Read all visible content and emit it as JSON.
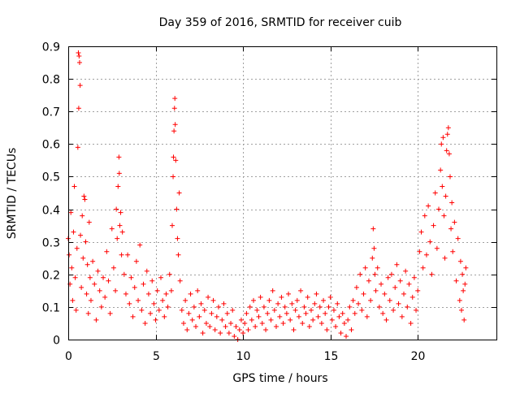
{
  "chart_data": {
    "type": "scatter",
    "title": "Day 359 of 2016, SRMTID for receiver cuib",
    "xlabel": "GPS time / hours",
    "ylabel": "SRMTID / TECUs",
    "xlim": [
      0,
      24.5
    ],
    "ylim": [
      0,
      0.9
    ],
    "xticks": [
      0,
      5,
      10,
      15,
      20
    ],
    "xtick_labels": [
      "0",
      "5",
      "10",
      "15",
      "20"
    ],
    "yticks": [
      0,
      0.1,
      0.2,
      0.3,
      0.4,
      0.5,
      0.6,
      0.7,
      0.8,
      0.9
    ],
    "ytick_labels": [
      "0",
      "0.1",
      "0.2",
      "0.3",
      "0.4",
      "0.5",
      "0.6",
      "0.7",
      "0.8",
      "0.9"
    ],
    "grid": true,
    "marker": "plus",
    "series_color": "#ff0000",
    "series": [
      {
        "name": "SRMTID",
        "points": [
          [
            0.0,
            0.31
          ],
          [
            0.05,
            0.26
          ],
          [
            0.1,
            0.17
          ],
          [
            0.15,
            0.39
          ],
          [
            0.2,
            0.22
          ],
          [
            0.25,
            0.12
          ],
          [
            0.3,
            0.33
          ],
          [
            0.35,
            0.47
          ],
          [
            0.4,
            0.19
          ],
          [
            0.45,
            0.09
          ],
          [
            0.5,
            0.28
          ],
          [
            0.55,
            0.59
          ],
          [
            0.58,
            0.88
          ],
          [
            0.6,
            0.71
          ],
          [
            0.62,
            0.87
          ],
          [
            0.65,
            0.85
          ],
          [
            0.68,
            0.78
          ],
          [
            0.7,
            0.32
          ],
          [
            0.75,
            0.16
          ],
          [
            0.8,
            0.38
          ],
          [
            0.85,
            0.25
          ],
          [
            0.9,
            0.44
          ],
          [
            0.95,
            0.43
          ],
          [
            1.0,
            0.3
          ],
          [
            1.05,
            0.14
          ],
          [
            1.1,
            0.23
          ],
          [
            1.15,
            0.08
          ],
          [
            1.2,
            0.36
          ],
          [
            1.25,
            0.19
          ],
          [
            1.3,
            0.12
          ],
          [
            1.4,
            0.24
          ],
          [
            1.5,
            0.17
          ],
          [
            1.6,
            0.06
          ],
          [
            1.7,
            0.21
          ],
          [
            1.8,
            0.15
          ],
          [
            1.9,
            0.1
          ],
          [
            2.0,
            0.19
          ],
          [
            2.1,
            0.13
          ],
          [
            2.2,
            0.27
          ],
          [
            2.3,
            0.18
          ],
          [
            2.4,
            0.08
          ],
          [
            2.5,
            0.34
          ],
          [
            2.6,
            0.22
          ],
          [
            2.7,
            0.15
          ],
          [
            2.75,
            0.4
          ],
          [
            2.8,
            0.31
          ],
          [
            2.85,
            0.47
          ],
          [
            2.9,
            0.56
          ],
          [
            2.92,
            0.51
          ],
          [
            2.95,
            0.35
          ],
          [
            3.0,
            0.39
          ],
          [
            3.05,
            0.26
          ],
          [
            3.1,
            0.33
          ],
          [
            3.2,
            0.2
          ],
          [
            3.3,
            0.14
          ],
          [
            3.4,
            0.26
          ],
          [
            3.5,
            0.11
          ],
          [
            3.6,
            0.19
          ],
          [
            3.7,
            0.07
          ],
          [
            3.8,
            0.16
          ],
          [
            3.9,
            0.24
          ],
          [
            4.0,
            0.12
          ],
          [
            4.1,
            0.29
          ],
          [
            4.2,
            0.09
          ],
          [
            4.3,
            0.17
          ],
          [
            4.4,
            0.05
          ],
          [
            4.5,
            0.21
          ],
          [
            4.6,
            0.14
          ],
          [
            4.7,
            0.08
          ],
          [
            4.8,
            0.18
          ],
          [
            4.9,
            0.11
          ],
          [
            5.0,
            0.06
          ],
          [
            5.1,
            0.15
          ],
          [
            5.2,
            0.09
          ],
          [
            5.3,
            0.19
          ],
          [
            5.4,
            0.12
          ],
          [
            5.5,
            0.07
          ],
          [
            5.6,
            0.14
          ],
          [
            5.7,
            0.1
          ],
          [
            5.8,
            0.2
          ],
          [
            5.9,
            0.15
          ],
          [
            5.95,
            0.35
          ],
          [
            6.0,
            0.5
          ],
          [
            6.02,
            0.56
          ],
          [
            6.05,
            0.64
          ],
          [
            6.08,
            0.71
          ],
          [
            6.1,
            0.74
          ],
          [
            6.12,
            0.66
          ],
          [
            6.15,
            0.55
          ],
          [
            6.2,
            0.4
          ],
          [
            6.25,
            0.31
          ],
          [
            6.3,
            0.26
          ],
          [
            6.35,
            0.45
          ],
          [
            6.4,
            0.18
          ],
          [
            6.5,
            0.09
          ],
          [
            6.6,
            0.05
          ],
          [
            6.7,
            0.12
          ],
          [
            6.8,
            0.03
          ],
          [
            6.9,
            0.08
          ],
          [
            7.0,
            0.14
          ],
          [
            7.1,
            0.06
          ],
          [
            7.2,
            0.1
          ],
          [
            7.3,
            0.04
          ],
          [
            7.4,
            0.15
          ],
          [
            7.5,
            0.07
          ],
          [
            7.6,
            0.11
          ],
          [
            7.7,
            0.02
          ],
          [
            7.8,
            0.09
          ],
          [
            7.9,
            0.05
          ],
          [
            8.0,
            0.13
          ],
          [
            8.1,
            0.04
          ],
          [
            8.2,
            0.08
          ],
          [
            8.3,
            0.12
          ],
          [
            8.4,
            0.03
          ],
          [
            8.5,
            0.07
          ],
          [
            8.6,
            0.1
          ],
          [
            8.7,
            0.02
          ],
          [
            8.8,
            0.06
          ],
          [
            8.9,
            0.11
          ],
          [
            9.0,
            0.04
          ],
          [
            9.1,
            0.08
          ],
          [
            9.2,
            0.02
          ],
          [
            9.3,
            0.05
          ],
          [
            9.4,
            0.09
          ],
          [
            9.5,
            0.01
          ],
          [
            9.6,
            0.04
          ],
          [
            9.7,
            0.0
          ],
          [
            9.8,
            0.03
          ],
          [
            9.9,
            0.06
          ],
          [
            10.0,
            0.02
          ],
          [
            10.1,
            0.05
          ],
          [
            10.2,
            0.08
          ],
          [
            10.3,
            0.03
          ],
          [
            10.4,
            0.1
          ],
          [
            10.5,
            0.06
          ],
          [
            10.6,
            0.12
          ],
          [
            10.7,
            0.04
          ],
          [
            10.8,
            0.09
          ],
          [
            10.9,
            0.07
          ],
          [
            11.0,
            0.13
          ],
          [
            11.1,
            0.05
          ],
          [
            11.2,
            0.1
          ],
          [
            11.3,
            0.03
          ],
          [
            11.4,
            0.08
          ],
          [
            11.5,
            0.12
          ],
          [
            11.6,
            0.06
          ],
          [
            11.7,
            0.15
          ],
          [
            11.8,
            0.09
          ],
          [
            11.9,
            0.04
          ],
          [
            12.0,
            0.11
          ],
          [
            12.1,
            0.07
          ],
          [
            12.2,
            0.13
          ],
          [
            12.3,
            0.05
          ],
          [
            12.4,
            0.1
          ],
          [
            12.5,
            0.08
          ],
          [
            12.6,
            0.14
          ],
          [
            12.7,
            0.06
          ],
          [
            12.8,
            0.11
          ],
          [
            12.9,
            0.03
          ],
          [
            13.0,
            0.09
          ],
          [
            13.1,
            0.12
          ],
          [
            13.2,
            0.07
          ],
          [
            13.3,
            0.15
          ],
          [
            13.4,
            0.05
          ],
          [
            13.5,
            0.1
          ],
          [
            13.6,
            0.08
          ],
          [
            13.7,
            0.13
          ],
          [
            13.8,
            0.04
          ],
          [
            13.9,
            0.09
          ],
          [
            14.0,
            0.06
          ],
          [
            14.1,
            0.11
          ],
          [
            14.2,
            0.14
          ],
          [
            14.3,
            0.07
          ],
          [
            14.4,
            0.1
          ],
          [
            14.5,
            0.05
          ],
          [
            14.6,
            0.12
          ],
          [
            14.7,
            0.08
          ],
          [
            14.8,
            0.03
          ],
          [
            14.9,
            0.1
          ],
          [
            15.0,
            0.13
          ],
          [
            15.1,
            0.06
          ],
          [
            15.2,
            0.09
          ],
          [
            15.3,
            0.04
          ],
          [
            15.4,
            0.11
          ],
          [
            15.5,
            0.07
          ],
          [
            15.6,
            0.02
          ],
          [
            15.7,
            0.08
          ],
          [
            15.8,
            0.05
          ],
          [
            15.9,
            0.01
          ],
          [
            16.0,
            0.06
          ],
          [
            16.1,
            0.1
          ],
          [
            16.2,
            0.03
          ],
          [
            16.3,
            0.12
          ],
          [
            16.4,
            0.08
          ],
          [
            16.5,
            0.16
          ],
          [
            16.6,
            0.11
          ],
          [
            16.7,
            0.2
          ],
          [
            16.8,
            0.09
          ],
          [
            16.9,
            0.14
          ],
          [
            17.0,
            0.22
          ],
          [
            17.1,
            0.07
          ],
          [
            17.2,
            0.18
          ],
          [
            17.3,
            0.12
          ],
          [
            17.4,
            0.25
          ],
          [
            17.45,
            0.34
          ],
          [
            17.5,
            0.28
          ],
          [
            17.55,
            0.2
          ],
          [
            17.6,
            0.15
          ],
          [
            17.7,
            0.22
          ],
          [
            17.8,
            0.1
          ],
          [
            17.9,
            0.17
          ],
          [
            18.0,
            0.08
          ],
          [
            18.1,
            0.14
          ],
          [
            18.2,
            0.06
          ],
          [
            18.3,
            0.19
          ],
          [
            18.4,
            0.12
          ],
          [
            18.5,
            0.2
          ],
          [
            18.6,
            0.09
          ],
          [
            18.7,
            0.16
          ],
          [
            18.8,
            0.23
          ],
          [
            18.9,
            0.11
          ],
          [
            19.0,
            0.18
          ],
          [
            19.1,
            0.07
          ],
          [
            19.2,
            0.14
          ],
          [
            19.3,
            0.21
          ],
          [
            19.4,
            0.1
          ],
          [
            19.5,
            0.17
          ],
          [
            19.6,
            0.05
          ],
          [
            19.7,
            0.13
          ],
          [
            19.8,
            0.19
          ],
          [
            19.9,
            0.09
          ],
          [
            20.0,
            0.15
          ],
          [
            20.1,
            0.27
          ],
          [
            20.2,
            0.33
          ],
          [
            20.3,
            0.22
          ],
          [
            20.4,
            0.38
          ],
          [
            20.5,
            0.26
          ],
          [
            20.6,
            0.41
          ],
          [
            20.7,
            0.3
          ],
          [
            20.8,
            0.2
          ],
          [
            20.9,
            0.35
          ],
          [
            21.0,
            0.45
          ],
          [
            21.1,
            0.28
          ],
          [
            21.2,
            0.4
          ],
          [
            21.3,
            0.52
          ],
          [
            21.35,
            0.6
          ],
          [
            21.4,
            0.47
          ],
          [
            21.45,
            0.62
          ],
          [
            21.5,
            0.38
          ],
          [
            21.55,
            0.25
          ],
          [
            21.6,
            0.44
          ],
          [
            21.65,
            0.58
          ],
          [
            21.7,
            0.63
          ],
          [
            21.75,
            0.65
          ],
          [
            21.8,
            0.57
          ],
          [
            21.85,
            0.5
          ],
          [
            21.9,
            0.34
          ],
          [
            21.95,
            0.42
          ],
          [
            22.0,
            0.27
          ],
          [
            22.1,
            0.36
          ],
          [
            22.2,
            0.18
          ],
          [
            22.3,
            0.31
          ],
          [
            22.4,
            0.12
          ],
          [
            22.45,
            0.24
          ],
          [
            22.5,
            0.09
          ],
          [
            22.55,
            0.2
          ],
          [
            22.6,
            0.15
          ],
          [
            22.65,
            0.06
          ],
          [
            22.7,
            0.17
          ],
          [
            22.75,
            0.22
          ]
        ]
      }
    ]
  }
}
